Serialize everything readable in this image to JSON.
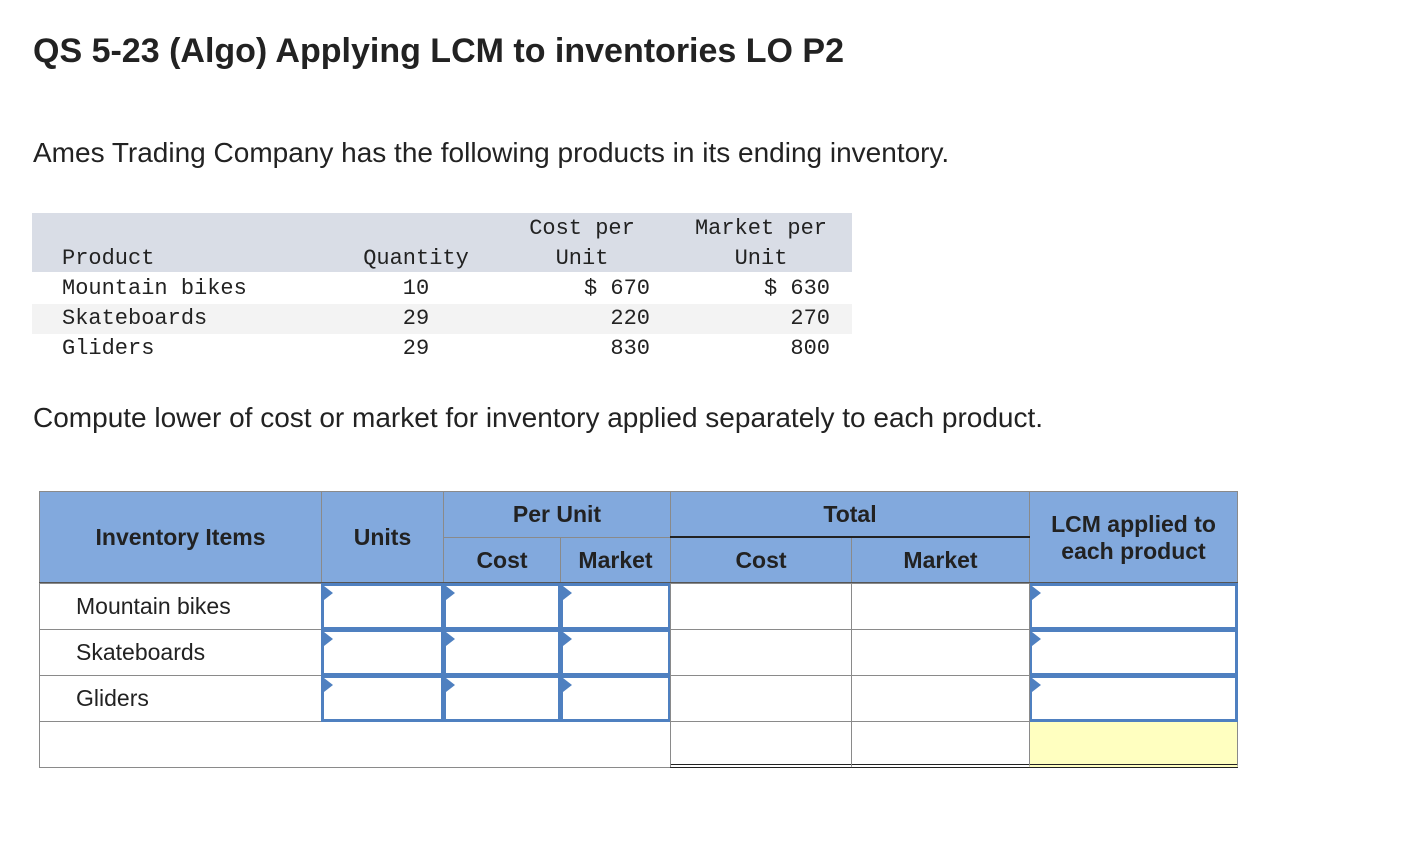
{
  "title": "QS 5-23 (Algo) Applying LCM to inventories LO P2",
  "intro": "Ames Trading Company has the following products in its ending inventory.",
  "inventory_table": {
    "headers": [
      "Product",
      "Quantity",
      "Cost per Unit",
      "Market per Unit"
    ],
    "rows": [
      [
        "Mountain bikes",
        "10",
        "$ 670",
        "$ 630"
      ],
      [
        "Skateboards",
        "29",
        "220",
        "270"
      ],
      [
        "Gliders",
        "29",
        "830",
        "800"
      ]
    ]
  },
  "question": "Compute lower of cost or market for inventory applied separately to each product.",
  "answer_table": {
    "headers": {
      "inventory_items": "Inventory Items",
      "units": "Units",
      "per_unit": "Per Unit",
      "per_unit_cost": "Cost",
      "per_unit_market": "Market",
      "total": "Total",
      "total_cost": "Cost",
      "total_market": "Market",
      "lcm": "LCM applied to each product"
    },
    "rows": [
      "Mountain bikes",
      "Skateboards",
      "Gliders"
    ]
  }
}
